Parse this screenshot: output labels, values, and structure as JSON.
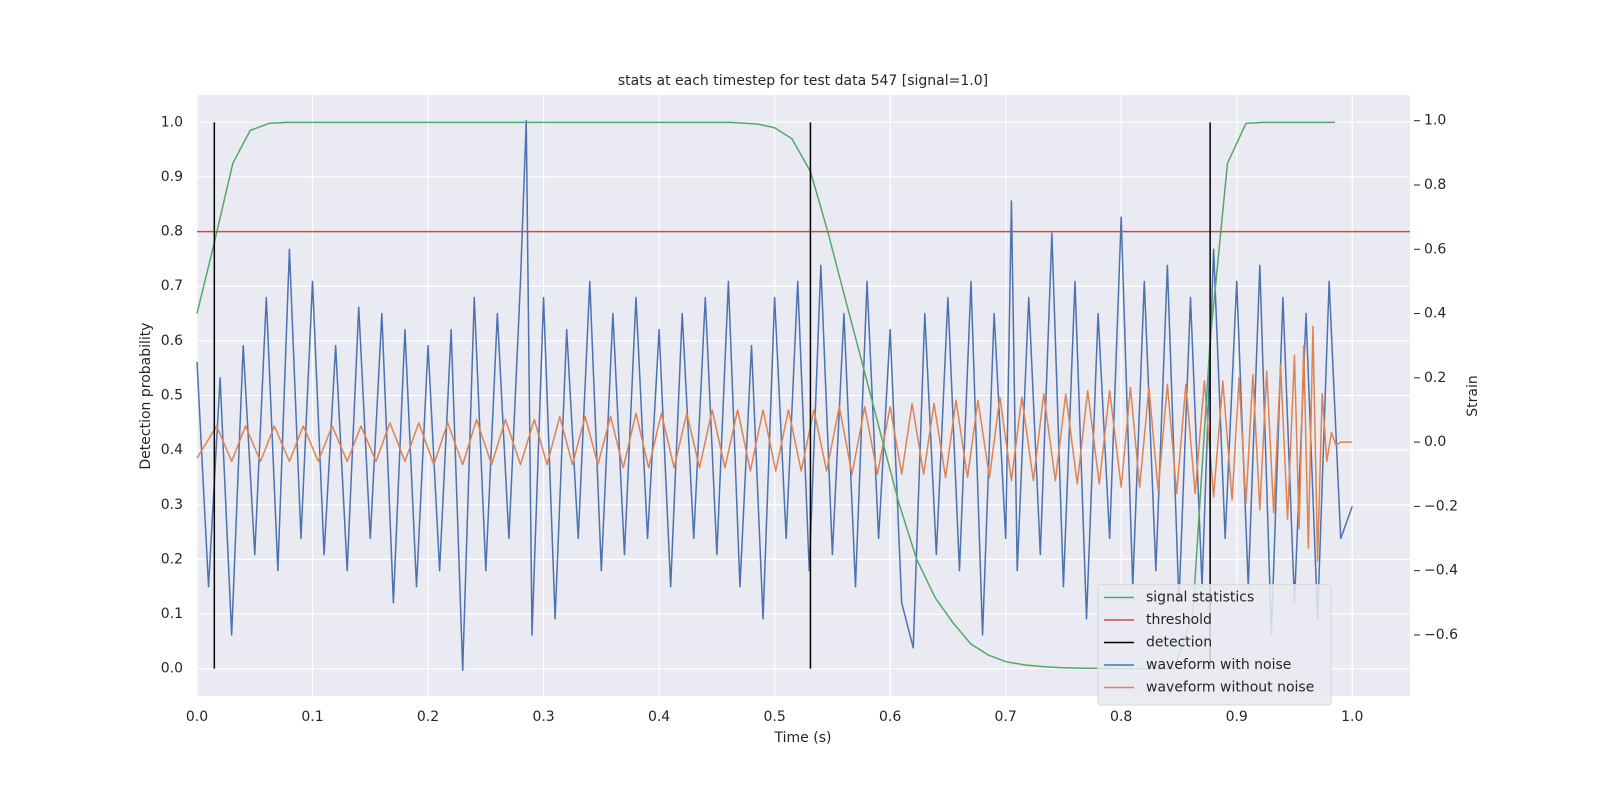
{
  "chart_data": {
    "type": "line",
    "title": "stats at each timestep for test data 547 [signal=1.0]",
    "xlabel": "Time (s)",
    "ylabel": "Detection probability",
    "y2label": "Strain",
    "xlim": [
      0,
      1.05
    ],
    "ylim": [
      -0.05,
      1.05
    ],
    "y2lim": [
      -0.79,
      1.08
    ],
    "xticks": [
      {
        "value": 0,
        "label": "0.0"
      },
      0.1,
      0.2,
      0.3,
      0.4,
      0.5,
      0.6,
      0.7,
      0.8,
      0.9,
      {
        "value": 1,
        "label": "1.0"
      }
    ],
    "yticks": [
      {
        "value": 0,
        "label": "0.0"
      },
      0.1,
      0.2,
      0.3,
      0.4,
      0.5,
      0.6,
      0.7,
      0.8,
      0.9,
      {
        "value": 1,
        "label": "1.0"
      }
    ],
    "y2ticks": [
      {
        "value": -0.6,
        "label": "−0.6"
      },
      {
        "value": -0.4,
        "label": "−0.4"
      },
      {
        "value": -0.2,
        "label": "−0.2"
      },
      {
        "value": 0,
        "label": "0.0"
      },
      0.2,
      0.4,
      0.6,
      0.8,
      {
        "value": 1,
        "label": "1.0"
      }
    ],
    "grid": true,
    "legend": "lower right",
    "series": [
      {
        "name": "signal statistics",
        "color": "#55a868",
        "kind": "line",
        "axis": "y",
        "x": [
          0,
          0.015,
          0.031,
          0.046,
          0.062,
          0.077,
          0.462,
          0.485,
          0.5,
          0.515,
          0.531,
          0.546,
          0.562,
          0.577,
          0.593,
          0.608,
          0.623,
          0.639,
          0.654,
          0.67,
          0.685,
          0.7,
          0.716,
          0.731,
          0.747,
          0.762,
          0.8,
          0.846,
          0.862,
          0.877,
          0.892,
          0.908,
          0.923,
          0.985
        ],
        "values": [
          0.65,
          0.78,
          0.925,
          0.985,
          0.998,
          1,
          1,
          0.997,
          0.99,
          0.97,
          0.91,
          0.8,
          0.67,
          0.55,
          0.42,
          0.3,
          0.2,
          0.13,
          0.085,
          0.045,
          0.025,
          0.013,
          0.007,
          0.004,
          0.002,
          0.001,
          0,
          0,
          0.1,
          0.6,
          0.925,
          0.998,
          1,
          1
        ]
      },
      {
        "name": "threshold",
        "color": "#c44e52",
        "kind": "hline",
        "axis": "y",
        "values": [
          0.8
        ]
      },
      {
        "name": "detection",
        "color": "#000000",
        "kind": "vline",
        "axis": "y",
        "x": [
          0.015,
          0.531,
          0.877
        ],
        "span": [
          0,
          1
        ]
      },
      {
        "name": "waveform with noise",
        "color": "#4c72b0",
        "kind": "line",
        "axis": "y2",
        "x": [
          0,
          0.01,
          0.02,
          0.03,
          0.04,
          0.05,
          0.06,
          0.07,
          0.08,
          0.09,
          0.1,
          0.11,
          0.12,
          0.13,
          0.14,
          0.15,
          0.16,
          0.17,
          0.18,
          0.19,
          0.2,
          0.21,
          0.22,
          0.23,
          0.24,
          0.25,
          0.26,
          0.27,
          0.28,
          0.285,
          0.29,
          0.3,
          0.31,
          0.32,
          0.33,
          0.34,
          0.35,
          0.36,
          0.37,
          0.38,
          0.39,
          0.4,
          0.41,
          0.42,
          0.43,
          0.44,
          0.45,
          0.46,
          0.47,
          0.48,
          0.49,
          0.5,
          0.51,
          0.52,
          0.53,
          0.54,
          0.55,
          0.56,
          0.57,
          0.58,
          0.59,
          0.6,
          0.61,
          0.62,
          0.63,
          0.64,
          0.65,
          0.66,
          0.67,
          0.68,
          0.69,
          0.7,
          0.705,
          0.71,
          0.72,
          0.73,
          0.74,
          0.75,
          0.76,
          0.77,
          0.78,
          0.79,
          0.8,
          0.81,
          0.82,
          0.83,
          0.84,
          0.85,
          0.86,
          0.87,
          0.88,
          0.89,
          0.9,
          0.91,
          0.92,
          0.93,
          0.94,
          0.95,
          0.96,
          0.97,
          0.98,
          0.99,
          1
        ],
        "values": [
          0.25,
          -0.45,
          0.2,
          -0.6,
          0.3,
          -0.35,
          0.45,
          -0.4,
          0.6,
          -0.3,
          0.5,
          -0.35,
          0.3,
          -0.4,
          0.42,
          -0.3,
          0.4,
          -0.5,
          0.35,
          -0.45,
          0.3,
          -0.4,
          0.35,
          -0.71,
          0.45,
          -0.4,
          0.4,
          -0.3,
          0.5,
          1,
          -0.6,
          0.45,
          -0.55,
          0.35,
          -0.3,
          0.5,
          -0.4,
          0.4,
          -0.35,
          0.45,
          -0.3,
          0.35,
          -0.45,
          0.4,
          -0.3,
          0.45,
          -0.35,
          0.5,
          -0.45,
          0.3,
          -0.55,
          0.45,
          -0.3,
          0.5,
          -0.4,
          0.55,
          -0.35,
          0.4,
          -0.45,
          0.5,
          -0.3,
          0.35,
          -0.5,
          -0.64,
          0.4,
          -0.35,
          0.45,
          -0.4,
          0.5,
          -0.6,
          0.4,
          -0.3,
          0.75,
          -0.4,
          0.45,
          -0.35,
          0.65,
          -0.45,
          0.5,
          -0.55,
          0.4,
          -0.3,
          0.7,
          -0.45,
          0.5,
          -0.4,
          0.55,
          -0.5,
          0.45,
          -0.45,
          0.6,
          -0.3,
          0.5,
          -0.45,
          0.55,
          -0.6,
          0.45,
          -0.5,
          0.4,
          -0.55,
          0.5,
          -0.3,
          -0.2
        ]
      },
      {
        "name": "waveform without noise",
        "color": "#dd8452",
        "kind": "line",
        "axis": "y2",
        "x": [
          0,
          0.017,
          0.03,
          0.042,
          0.055,
          0.067,
          0.08,
          0.092,
          0.105,
          0.117,
          0.13,
          0.142,
          0.155,
          0.167,
          0.18,
          0.192,
          0.205,
          0.217,
          0.23,
          0.242,
          0.255,
          0.267,
          0.28,
          0.292,
          0.303,
          0.314,
          0.325,
          0.336,
          0.347,
          0.358,
          0.369,
          0.38,
          0.391,
          0.402,
          0.413,
          0.424,
          0.435,
          0.446,
          0.457,
          0.468,
          0.479,
          0.49,
          0.501,
          0.512,
          0.523,
          0.534,
          0.545,
          0.556,
          0.567,
          0.578,
          0.589,
          0.6,
          0.61,
          0.619,
          0.629,
          0.638,
          0.648,
          0.657,
          0.667,
          0.676,
          0.686,
          0.695,
          0.705,
          0.714,
          0.724,
          0.733,
          0.743,
          0.752,
          0.762,
          0.771,
          0.781,
          0.79,
          0.8,
          0.808,
          0.816,
          0.824,
          0.832,
          0.84,
          0.848,
          0.856,
          0.864,
          0.872,
          0.88,
          0.888,
          0.896,
          0.902,
          0.908,
          0.914,
          0.92,
          0.926,
          0.932,
          0.938,
          0.944,
          0.95,
          0.954,
          0.958,
          0.962,
          0.966,
          0.97,
          0.974,
          0.978,
          0.982,
          0.986,
          0.99,
          1
        ],
        "values": [
          -0.05,
          0.05,
          -0.06,
          0.05,
          -0.06,
          0.05,
          -0.06,
          0.05,
          -0.06,
          0.05,
          -0.06,
          0.05,
          -0.06,
          0.06,
          -0.06,
          0.06,
          -0.07,
          0.06,
          -0.07,
          0.07,
          -0.07,
          0.07,
          -0.07,
          0.07,
          -0.07,
          0.08,
          -0.07,
          0.08,
          -0.07,
          0.08,
          -0.08,
          0.09,
          -0.08,
          0.09,
          -0.08,
          0.09,
          -0.08,
          0.1,
          -0.08,
          0.1,
          -0.09,
          0.1,
          -0.09,
          0.1,
          -0.09,
          0.1,
          -0.09,
          0.11,
          -0.1,
          0.11,
          -0.1,
          0.11,
          -0.1,
          0.12,
          -0.1,
          0.12,
          -0.11,
          0.13,
          -0.11,
          0.13,
          -0.11,
          0.14,
          -0.12,
          0.14,
          -0.12,
          0.15,
          -0.12,
          0.15,
          -0.13,
          0.16,
          -0.13,
          0.16,
          -0.14,
          0.17,
          -0.14,
          0.17,
          -0.15,
          0.18,
          -0.16,
          0.18,
          -0.16,
          0.19,
          -0.17,
          0.19,
          -0.18,
          0.2,
          -0.19,
          0.21,
          -0.21,
          0.22,
          -0.22,
          0.24,
          -0.24,
          0.27,
          -0.27,
          0.3,
          -0.33,
          0.36,
          -0.37,
          0.15,
          -0.06,
          0.03,
          -0.01,
          0,
          0
        ]
      }
    ]
  }
}
